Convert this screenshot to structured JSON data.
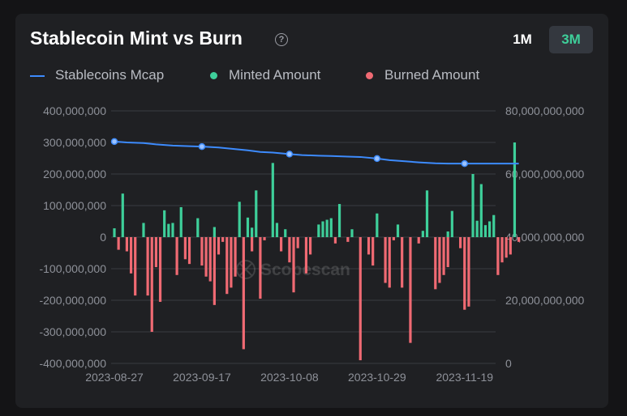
{
  "header": {
    "title": "Stablecoin Mint vs Burn",
    "help_icon": "question-circle-icon",
    "range_buttons": [
      {
        "label": "1M",
        "active": false
      },
      {
        "label": "3M",
        "active": true
      }
    ]
  },
  "legend": [
    {
      "label": "Stablecoins Mcap",
      "color": "#3d8bfd",
      "shape": "line"
    },
    {
      "label": "Minted Amount",
      "color": "#3ecf9a",
      "shape": "dot"
    },
    {
      "label": "Burned Amount",
      "color": "#f06a73",
      "shape": "dot"
    }
  ],
  "watermark": "Scopescan",
  "chart_data": {
    "type": "bar",
    "start_date": "2023-08-27",
    "x_tick_labels": [
      "2023-08-27",
      "2023-09-17",
      "2023-10-08",
      "2023-10-29",
      "2023-11-19"
    ],
    "x_tick_day_offsets": [
      0,
      21,
      42,
      63,
      84
    ],
    "y_left": {
      "range": [
        -400000000,
        400000000
      ],
      "ticks": [
        400000000,
        300000000,
        200000000,
        100000000,
        0,
        -100000000,
        -200000000,
        -300000000,
        -400000000
      ],
      "tick_labels": [
        "400,000,000",
        "300,000,000",
        "200,000,000",
        "100,000,000",
        "0",
        "-100,000,000",
        "-200,000,000",
        "-300,000,000",
        "-400,000,000"
      ]
    },
    "y_right": {
      "range": [
        0,
        80000000000
      ],
      "ticks": [
        80000000000,
        60000000000,
        40000000000,
        20000000000,
        0
      ],
      "tick_labels": [
        "80,000,000,000",
        "60,000,000,000",
        "40,000,000,000",
        "20,000,000,000",
        "0"
      ]
    },
    "grid": true,
    "series": [
      {
        "name": "Minted Amount",
        "color": "#3ecf9a",
        "axis": "left",
        "points": [
          [
            0,
            28000000
          ],
          [
            2,
            138000000
          ],
          [
            7,
            45000000
          ],
          [
            12,
            85000000
          ],
          [
            13,
            42000000
          ],
          [
            14,
            45000000
          ],
          [
            16,
            95000000
          ],
          [
            20,
            60000000
          ],
          [
            24,
            32000000
          ],
          [
            30,
            112000000
          ],
          [
            32,
            62000000
          ],
          [
            33,
            30000000
          ],
          [
            34,
            148000000
          ],
          [
            38,
            235000000
          ],
          [
            39,
            45000000
          ],
          [
            41,
            25000000
          ],
          [
            49,
            40000000
          ],
          [
            50,
            50000000
          ],
          [
            51,
            55000000
          ],
          [
            52,
            60000000
          ],
          [
            54,
            105000000
          ],
          [
            57,
            25000000
          ],
          [
            63,
            75000000
          ],
          [
            68,
            40000000
          ],
          [
            74,
            20000000
          ],
          [
            75,
            148000000
          ],
          [
            80,
            18000000
          ],
          [
            81,
            83000000
          ],
          [
            86,
            200000000
          ],
          [
            87,
            52000000
          ],
          [
            88,
            168000000
          ],
          [
            89,
            38000000
          ],
          [
            90,
            50000000
          ],
          [
            91,
            70000000
          ],
          [
            96,
            300000000
          ]
        ]
      },
      {
        "name": "Burned Amount",
        "color": "#f06a73",
        "axis": "left",
        "points": [
          [
            1,
            -40000000
          ],
          [
            3,
            -45000000
          ],
          [
            4,
            -115000000
          ],
          [
            5,
            -185000000
          ],
          [
            8,
            -185000000
          ],
          [
            9,
            -300000000
          ],
          [
            10,
            -95000000
          ],
          [
            11,
            -205000000
          ],
          [
            15,
            -120000000
          ],
          [
            17,
            -70000000
          ],
          [
            18,
            -85000000
          ],
          [
            21,
            -90000000
          ],
          [
            22,
            -125000000
          ],
          [
            23,
            -140000000
          ],
          [
            24,
            -215000000
          ],
          [
            25,
            -55000000
          ],
          [
            26,
            -15000000
          ],
          [
            27,
            -180000000
          ],
          [
            28,
            -160000000
          ],
          [
            29,
            -125000000
          ],
          [
            31,
            -355000000
          ],
          [
            33,
            -45000000
          ],
          [
            35,
            -195000000
          ],
          [
            36,
            -10000000
          ],
          [
            40,
            -45000000
          ],
          [
            42,
            -80000000
          ],
          [
            43,
            -175000000
          ],
          [
            44,
            -35000000
          ],
          [
            46,
            -115000000
          ],
          [
            47,
            -55000000
          ],
          [
            53,
            -20000000
          ],
          [
            56,
            -15000000
          ],
          [
            59,
            -390000000
          ],
          [
            61,
            -55000000
          ],
          [
            62,
            -90000000
          ],
          [
            65,
            -145000000
          ],
          [
            66,
            -160000000
          ],
          [
            67,
            -10000000
          ],
          [
            69,
            -160000000
          ],
          [
            71,
            -335000000
          ],
          [
            73,
            -20000000
          ],
          [
            77,
            -165000000
          ],
          [
            78,
            -145000000
          ],
          [
            79,
            -120000000
          ],
          [
            80,
            -95000000
          ],
          [
            83,
            -35000000
          ],
          [
            84,
            -230000000
          ],
          [
            85,
            -220000000
          ],
          [
            92,
            -120000000
          ],
          [
            93,
            -80000000
          ],
          [
            94,
            -65000000
          ],
          [
            95,
            -55000000
          ],
          [
            97,
            -15000000
          ]
        ]
      },
      {
        "name": "Stablecoins Mcap",
        "color": "#3d8bfd",
        "axis": "right",
        "type": "line",
        "points": [
          [
            0,
            70300000000
          ],
          [
            3,
            70000000000
          ],
          [
            7,
            69800000000
          ],
          [
            10,
            69400000000
          ],
          [
            14,
            69000000000
          ],
          [
            18,
            68800000000
          ],
          [
            21,
            68700000000
          ],
          [
            25,
            68400000000
          ],
          [
            28,
            68000000000
          ],
          [
            32,
            67500000000
          ],
          [
            35,
            67000000000
          ],
          [
            38,
            66800000000
          ],
          [
            42,
            66300000000
          ],
          [
            45,
            66000000000
          ],
          [
            49,
            65800000000
          ],
          [
            52,
            65700000000
          ],
          [
            56,
            65500000000
          ],
          [
            59,
            65400000000
          ],
          [
            63,
            64900000000
          ],
          [
            66,
            64400000000
          ],
          [
            70,
            64000000000
          ],
          [
            73,
            63700000000
          ],
          [
            77,
            63400000000
          ],
          [
            80,
            63300000000
          ],
          [
            84,
            63300000000
          ],
          [
            87,
            63300000000
          ],
          [
            91,
            63300000000
          ],
          [
            94,
            63300000000
          ],
          [
            97,
            63300000000
          ]
        ],
        "markers_at": [
          0,
          21,
          42,
          63,
          84
        ]
      }
    ]
  }
}
